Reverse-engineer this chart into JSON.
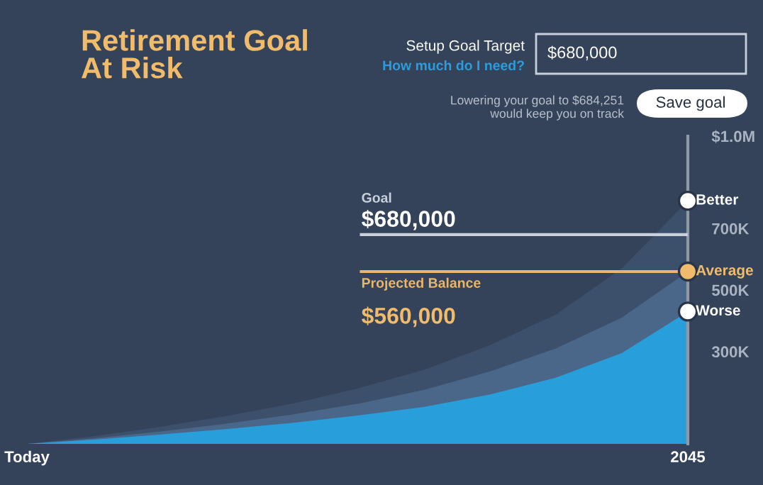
{
  "chart_data": {
    "type": "area",
    "title": "Retirement Goal\nAt Risk",
    "categories": [
      "Today",
      null,
      null,
      null,
      null,
      null,
      null,
      null,
      null,
      null,
      "2045"
    ],
    "series": [
      {
        "name": "Better",
        "color": "#3c4f6b",
        "values": [
          0,
          25000,
          55000,
          90000,
          130000,
          180000,
          240000,
          320000,
          420000,
          570000,
          790000
        ]
      },
      {
        "name": "Average",
        "color": "#4a6688",
        "values": [
          0,
          18000,
          40000,
          65000,
          95000,
          130000,
          175000,
          235000,
          310000,
          410000,
          560000
        ]
      },
      {
        "name": "Worse",
        "color": "#289fdb",
        "values": [
          0,
          14000,
          30000,
          48000,
          68000,
          92000,
          120000,
          160000,
          215000,
          295000,
          430000
        ]
      }
    ],
    "ylim": [
      0,
      1000000
    ],
    "yticks": [
      {
        "value": 300000,
        "label": "300K"
      },
      {
        "value": 500000,
        "label": "500K"
      },
      {
        "value": 700000,
        "label": "700K"
      },
      {
        "value": 1000000,
        "label": "$1.0M"
      }
    ],
    "ref_lines": [
      {
        "axis": "y",
        "value": 680000,
        "label": "Goal",
        "color": "#c8d0dc"
      },
      {
        "axis": "y",
        "value": 560000,
        "label": "Projected Balance",
        "color": "#e8b66a"
      }
    ],
    "annotations": [
      "Setup Goal Target",
      "How much do I need?",
      "$680,000",
      "Lowering your goal to $684,251\nwould keep you on track",
      "Save goal",
      {
        "text": "$680,000",
        "y": 680000
      },
      {
        "text": "$560,000",
        "y": 560000
      }
    ],
    "grid": false,
    "legend": false
  }
}
